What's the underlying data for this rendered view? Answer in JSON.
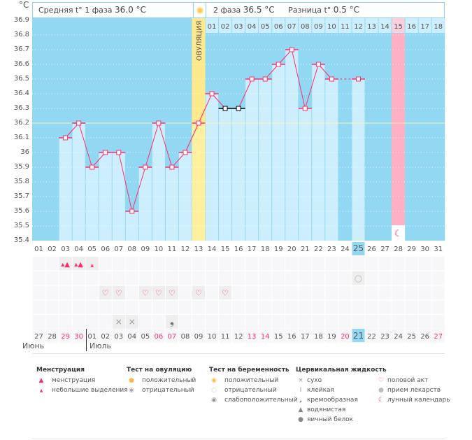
{
  "unit": "°C",
  "header": {
    "phase1": "Средняя t° 1 фаза",
    "phase1_value": "36.0 °C",
    "phase2": "2 фаза",
    "phase2_value": "36.5 °C",
    "diff": "Разница t°",
    "diff_value": "0.5 °C",
    "ovulation_label": "ОВУЛЯЦИЯ"
  },
  "colors": {
    "plot_bg": "#92d8f3",
    "bar": "#cdeefc",
    "line": "#ff2d6a",
    "ovulation": "#fff0a0",
    "moon_day": "#ffb0c4",
    "weekend": "#ff2d6a"
  },
  "chart_data": {
    "type": "line",
    "ylim": [
      35.4,
      36.9
    ],
    "y_ticks": [
      "36.9",
      "36.8",
      "36.7",
      "36.6",
      "36.5",
      "36.4",
      "36.3",
      "36.2",
      "36.1",
      "36",
      "35.9",
      "35.8",
      "35.7",
      "35.6",
      "35.5",
      "35.4"
    ],
    "coverline": 36.2,
    "cycle_days": [
      "01",
      "02",
      "03",
      "04",
      "05",
      "06",
      "07",
      "08",
      "09",
      "10",
      "11",
      "12",
      "13",
      "14",
      "15",
      "16",
      "17",
      "18",
      "19",
      "20",
      "21",
      "22",
      "23",
      "24",
      "25",
      "26",
      "27",
      "28",
      "29",
      "30",
      "31"
    ],
    "phase2_days": [
      "01",
      "02",
      "03",
      "04",
      "05",
      "06",
      "07",
      "08",
      "09",
      "10",
      "11",
      "12",
      "13",
      "14",
      "15",
      "16",
      "17",
      "18"
    ],
    "temperatures": [
      null,
      null,
      36.1,
      36.2,
      35.9,
      36.0,
      36.0,
      35.6,
      35.9,
      36.2,
      35.9,
      36.0,
      36.2,
      36.4,
      36.3,
      36.3,
      36.5,
      36.5,
      36.6,
      36.7,
      36.3,
      36.6,
      36.5,
      null,
      36.5,
      null,
      null,
      null,
      null,
      null,
      null
    ],
    "excluded_days": [
      15,
      16
    ],
    "ovulation_day": 13,
    "today_day": 25,
    "moon_day": 28
  },
  "calendar": {
    "dates": [
      "27",
      "28",
      "29",
      "30",
      "01",
      "02",
      "03",
      "04",
      "05",
      "06",
      "07",
      "08",
      "09",
      "10",
      "11",
      "12",
      "13",
      "14",
      "15",
      "16",
      "17",
      "18",
      "19",
      "20",
      "21",
      "22",
      "23",
      "24",
      "25",
      "26",
      "27"
    ],
    "weekends": [
      3,
      4,
      10,
      11,
      17,
      18,
      24,
      31
    ],
    "months": [
      "Июнь",
      "Июль"
    ]
  },
  "rows": {
    "menstruation": {
      "3": "heavy",
      "4": "heavy",
      "5": "light"
    },
    "pregnancy_test": {
      "25": "negative"
    },
    "intercourse": [
      6,
      7,
      9,
      10,
      11,
      13,
      15
    ],
    "cervical": {
      "7": "dry",
      "8": "dry",
      "11": "creamy"
    }
  },
  "legend": {
    "menstruation": {
      "title": "Менструация",
      "items": [
        "менструация",
        "небольшие выделения"
      ]
    },
    "ovulation_test": {
      "title": "Тест на овуляцию",
      "items": [
        "положительный",
        "отрицательный"
      ]
    },
    "pregnancy_test": {
      "title": "Тест на беременность",
      "items": [
        "положительный",
        "отрицательный",
        "слабоположительный"
      ]
    },
    "cervical": {
      "title": "Цервикальная жидкость",
      "items": [
        "сухо",
        "клейкая",
        "кремообразная",
        "водянистая",
        "яичный белок"
      ]
    },
    "other": {
      "items": [
        "половой акт",
        "прием лекарств",
        "лунный календарь"
      ]
    }
  }
}
